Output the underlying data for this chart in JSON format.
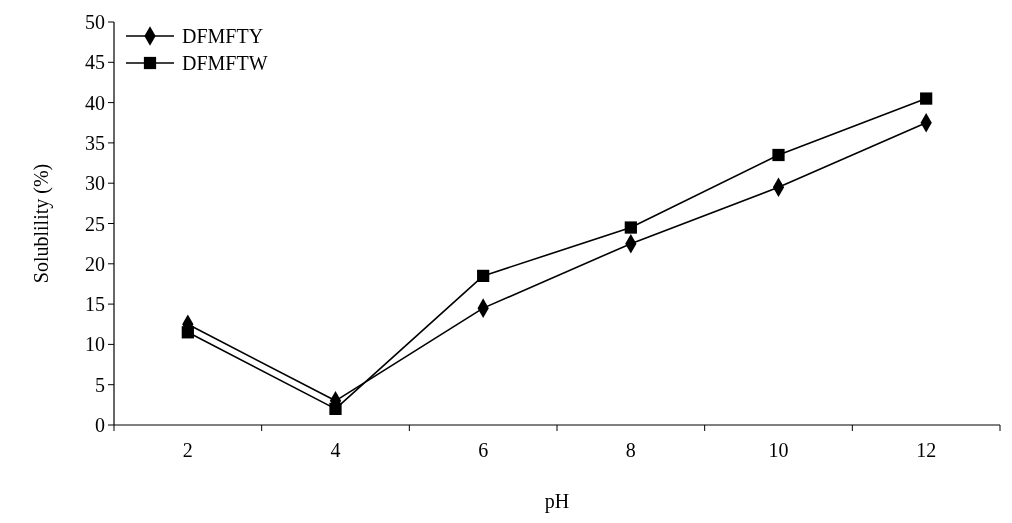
{
  "chart_data": {
    "type": "line",
    "xlabel": "pH",
    "ylabel": "Solublility (%)",
    "categories": [
      "2",
      "4",
      "6",
      "8",
      "10",
      "12"
    ],
    "series": [
      {
        "name": "DFMFTY",
        "color": "#000000",
        "marker": "diamond",
        "values": [
          12.5,
          3,
          14.5,
          22.5,
          29.5,
          37.5
        ]
      },
      {
        "name": "DFMFTW",
        "color": "#000000",
        "marker": "square",
        "values": [
          11.5,
          2,
          18.5,
          24.5,
          33.5,
          40.5
        ]
      }
    ],
    "ylim": [
      0,
      50
    ],
    "yticks": [
      0,
      5,
      10,
      15,
      20,
      25,
      30,
      35,
      40,
      45,
      50
    ],
    "grid": false,
    "legend": "top left",
    "line_style": "solid"
  }
}
